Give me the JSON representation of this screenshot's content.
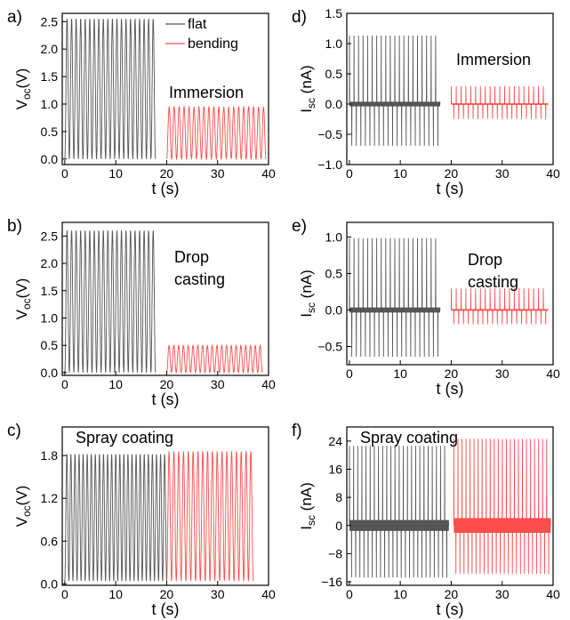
{
  "chart_data": [
    {
      "panel": "a)",
      "type": "line",
      "annotation": "Immersion",
      "xlabel": "t (s)",
      "ylabel": "Voc(V)",
      "xlim": [
        -0.5,
        40
      ],
      "ylim": [
        -0.1,
        2.65
      ],
      "xticks": [
        0,
        10,
        20,
        30,
        40
      ],
      "yticks": [
        "0.0",
        "0.5",
        "1.0",
        "1.5",
        "2.0",
        "2.5"
      ],
      "legend": [
        "flat",
        "bending"
      ],
      "series": [
        {
          "name": "flat",
          "color": "#555555",
          "style": "voltage",
          "t_start": 0,
          "t_end": 17.8,
          "cycles": 20,
          "max": 2.55,
          "min": 0.0
        },
        {
          "name": "bending",
          "color": "#ff4d4d",
          "style": "voltage",
          "t_start": 20,
          "t_end": 39.5,
          "cycles": 20,
          "max": 0.95,
          "min": 0.0
        }
      ]
    },
    {
      "panel": "b)",
      "type": "line",
      "annotation": [
        "Drop",
        "casting"
      ],
      "xlabel": "t (s)",
      "ylabel": "Voc(V)",
      "xlim": [
        -0.5,
        40
      ],
      "ylim": [
        -0.05,
        2.75
      ],
      "xticks": [
        0,
        10,
        20,
        30,
        40
      ],
      "yticks": [
        "0.0",
        "0.5",
        "1.0",
        "1.5",
        "2.0",
        "2.5"
      ],
      "series": [
        {
          "name": "flat",
          "color": "#555555",
          "style": "voltage",
          "t_start": 0,
          "t_end": 17.8,
          "cycles": 20,
          "max": 2.6,
          "min": 0.0
        },
        {
          "name": "bending",
          "color": "#ff4d4d",
          "style": "voltage",
          "t_start": 20,
          "t_end": 38.8,
          "cycles": 20,
          "max": 0.5,
          "min": 0.0
        }
      ]
    },
    {
      "panel": "c)",
      "type": "line",
      "annotation": "Spray coating",
      "xlabel": "t (s)",
      "ylabel": "Voc(V)",
      "xlim": [
        -0.5,
        40
      ],
      "ylim": [
        -0.02,
        2.2
      ],
      "xticks": [
        0,
        10,
        20,
        30,
        40
      ],
      "yticks": [
        "0.0",
        "0.6",
        "1.2",
        "1.8"
      ],
      "series": [
        {
          "name": "flat",
          "color": "#555555",
          "style": "voltage",
          "t_start": 0,
          "t_end": 20,
          "cycles": 25,
          "max": 1.82,
          "min": 0.04
        },
        {
          "name": "bending",
          "color": "#ff4d4d",
          "style": "voltage",
          "t_start": 20,
          "t_end": 37,
          "cycles": 18,
          "max": 1.86,
          "min": 0.04
        }
      ]
    },
    {
      "panel": "d)",
      "type": "line",
      "annotation": "Immersion",
      "xlabel": "t (s)",
      "ylabel": "Isc (nA)",
      "xlim": [
        -0.5,
        40
      ],
      "ylim": [
        -1.0,
        1.5
      ],
      "xticks": [
        0,
        10,
        20,
        30,
        40
      ],
      "yticks": [
        "−1.0",
        "−0.5",
        "0.0",
        "0.5",
        "1.0",
        "1.5"
      ],
      "series": [
        {
          "name": "flat",
          "color": "#555555",
          "style": "current",
          "t_start": 0,
          "t_end": 17.8,
          "cycles": 20,
          "max": 1.15,
          "min": -0.7
        },
        {
          "name": "bending",
          "color": "#ff4d4d",
          "style": "current",
          "t_start": 20,
          "t_end": 39,
          "cycles": 20,
          "max": 0.3,
          "min": -0.25
        }
      ]
    },
    {
      "panel": "e)",
      "type": "line",
      "annotation": [
        "Drop",
        "casting"
      ],
      "xlabel": "t (s)",
      "ylabel": "Isc (nA)",
      "xlim": [
        -0.5,
        40
      ],
      "ylim": [
        -0.75,
        1.2
      ],
      "xticks": [
        0,
        10,
        20,
        30,
        40
      ],
      "yticks": [
        "−0.5",
        "0.0",
        "0.5",
        "1.0"
      ],
      "series": [
        {
          "name": "flat",
          "color": "#555555",
          "style": "current",
          "t_start": 0,
          "t_end": 17.8,
          "cycles": 20,
          "max": 1.0,
          "min": -0.65
        },
        {
          "name": "bending",
          "color": "#ff4d4d",
          "style": "current",
          "t_start": 20,
          "t_end": 39,
          "cycles": 20,
          "max": 0.3,
          "min": -0.2
        }
      ]
    },
    {
      "panel": "f)",
      "type": "line",
      "annotation": "Spray coating",
      "xlabel": "t (s)",
      "ylabel": "Isc (nA)",
      "xlim": [
        -0.5,
        40
      ],
      "ylim": [
        -17,
        28
      ],
      "xticks": [
        0,
        10,
        20,
        30,
        40
      ],
      "yticks": [
        "−16",
        "−8",
        "0",
        "8",
        "16",
        "24"
      ],
      "series": [
        {
          "name": "flat",
          "color": "#555555",
          "style": "current",
          "t_start": 0,
          "t_end": 19.5,
          "cycles": 24,
          "max": 23,
          "min": -15,
          "band": 3
        },
        {
          "name": "bending",
          "color": "#ff4d4d",
          "style": "current",
          "t_start": 20.5,
          "t_end": 39.5,
          "cycles": 24,
          "max": 25,
          "min": -14,
          "band": 4
        }
      ]
    }
  ]
}
